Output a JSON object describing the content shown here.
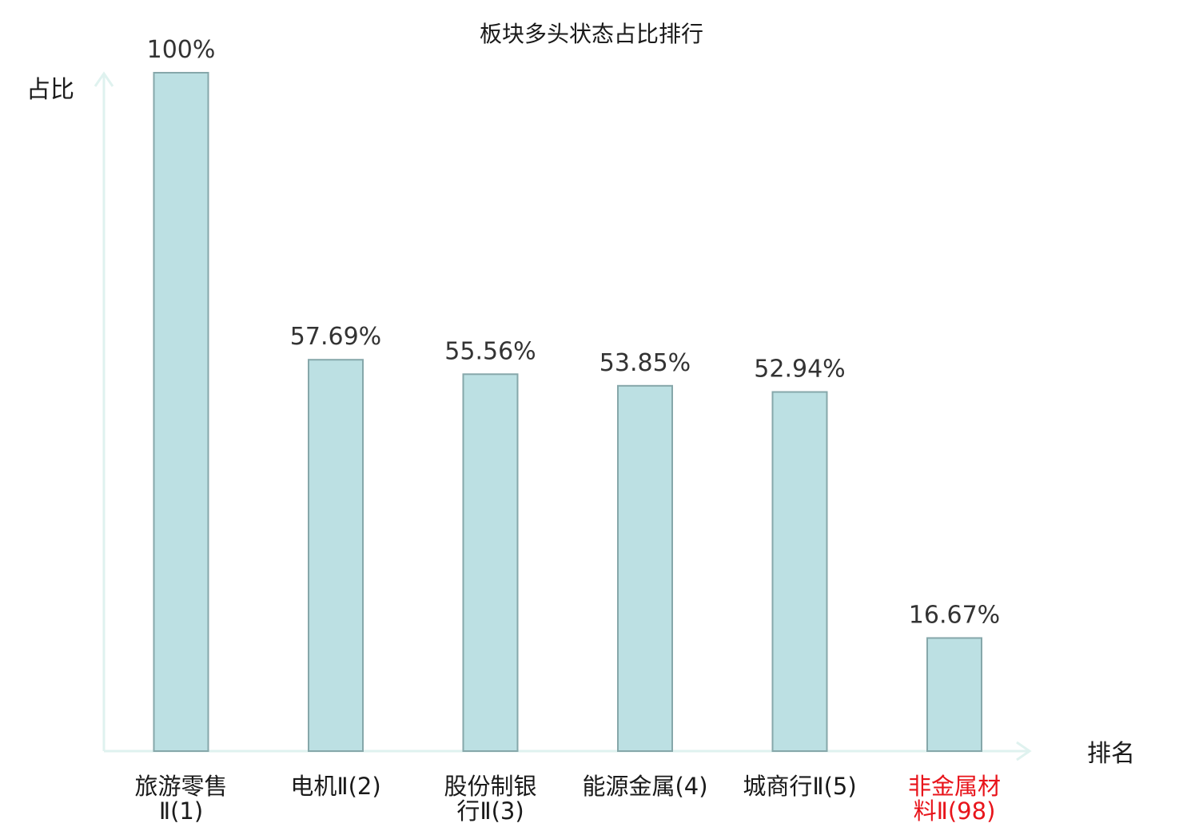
{
  "chart_data": {
    "type": "bar",
    "title": "板块多头状态占比排行",
    "ylabel": "占比",
    "xlabel": "排名",
    "ylim": [
      0,
      100
    ],
    "grid": false,
    "categories": [
      [
        "旅游零售",
        "Ⅱ(1)"
      ],
      [
        "电机Ⅱ(2)"
      ],
      [
        "股份制银",
        "行Ⅱ(3)"
      ],
      [
        "能源金属(4)"
      ],
      [
        "城商行Ⅱ(5)"
      ],
      [
        "非金属材",
        "料Ⅱ(98)"
      ]
    ],
    "values": [
      100,
      57.69,
      55.56,
      53.85,
      52.94,
      16.67
    ],
    "value_labels": [
      "100%",
      "57.69%",
      "55.56%",
      "53.85%",
      "52.94%",
      "16.67%"
    ],
    "highlight_index": 5,
    "colors": {
      "bar_fill": "#bce0e3",
      "bar_stroke": "#86a7aa",
      "axis": "#dff2ef",
      "highlight": "#e8141b",
      "text": "#1a1a1a"
    }
  }
}
